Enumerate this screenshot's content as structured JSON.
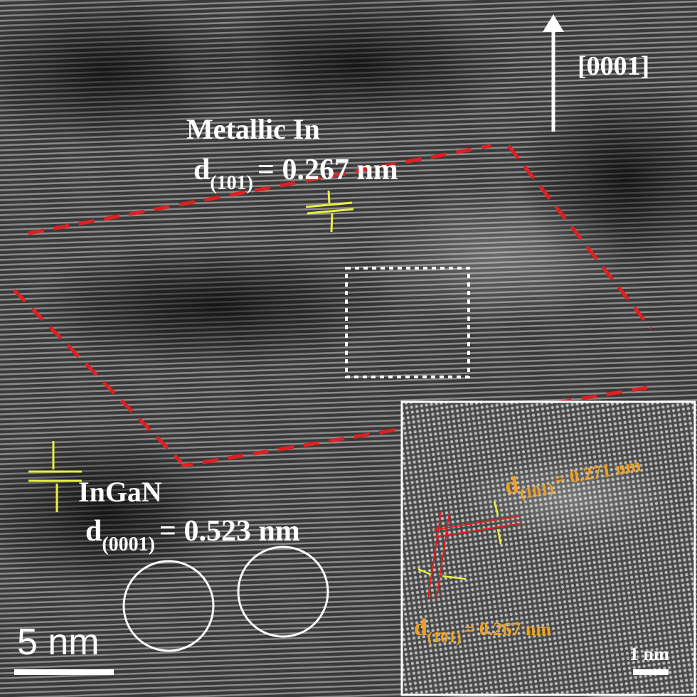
{
  "main": {
    "direction_label": "[0001]",
    "metallic": {
      "label": "Metallic In",
      "d": "d",
      "index": "(101)",
      "value": "= 0.267 nm"
    },
    "ingan": {
      "label": "InGaN",
      "d": "d",
      "index": "(0001)",
      "value": "= 0.523 nm"
    },
    "scale_bar": "5 nm"
  },
  "inset": {
    "top": {
      "d": "d",
      "index": "(101)",
      "value": "= 0.271 nm"
    },
    "bottom": {
      "d": "d",
      "index": "(1̄01)",
      "value": "= 0.267 nm"
    },
    "scale_bar": "1 nm"
  }
}
